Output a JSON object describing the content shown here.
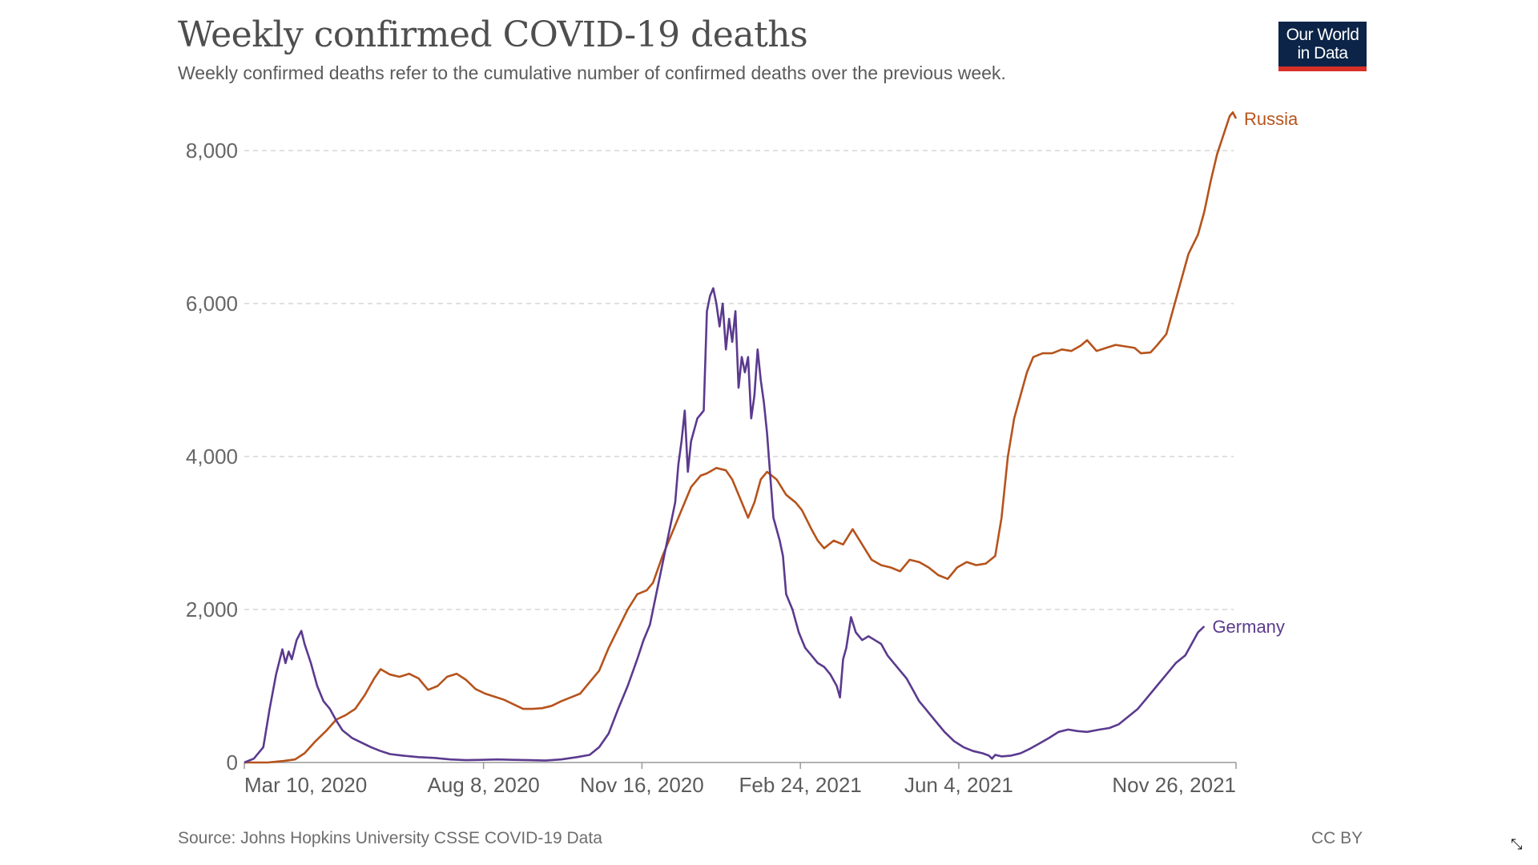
{
  "header": {
    "title": "Weekly confirmed COVID-19 deaths",
    "subtitle": "Weekly confirmed deaths refer to the cumulative number of confirmed deaths over the previous week."
  },
  "logo": {
    "line1": "Our World",
    "line2": "in Data",
    "bg_color": "#0b2447",
    "accent_color": "#d73027"
  },
  "footer": {
    "source": "Source: Johns Hopkins University CSSE COVID-19 Data",
    "license": "CC BY",
    "expand_icon": "collapse-arrows-icon"
  },
  "chart_data": {
    "type": "line",
    "title": "Weekly confirmed COVID-19 deaths",
    "subtitle": "Weekly confirmed deaths refer to the cumulative number of confirmed deaths over the previous week.",
    "xlabel": "",
    "ylabel": "",
    "x_unit": "days since Mar 10, 2020",
    "xlim": [
      0,
      626
    ],
    "ylim": [
      0,
      8500
    ],
    "grid": "horizontal dashed",
    "legend": "inline labels at line ends (right)",
    "y_ticks": [
      {
        "value": 0,
        "label": "0"
      },
      {
        "value": 2000,
        "label": "2,000"
      },
      {
        "value": 4000,
        "label": "4,000"
      },
      {
        "value": 6000,
        "label": "6,000"
      },
      {
        "value": 8000,
        "label": "8,000"
      }
    ],
    "x_ticks": [
      {
        "value": 0,
        "label": "Mar 10, 2020"
      },
      {
        "value": 151,
        "label": "Aug 8, 2020"
      },
      {
        "value": 251,
        "label": "Nov 16, 2020"
      },
      {
        "value": 351,
        "label": "Feb 24, 2021"
      },
      {
        "value": 451,
        "label": "Jun 4, 2021"
      },
      {
        "value": 626,
        "label": "Nov 26, 2021"
      }
    ],
    "series": [
      {
        "name": "Russia",
        "color": "#b6531c",
        "points": [
          [
            0,
            0
          ],
          [
            15,
            0
          ],
          [
            25,
            20
          ],
          [
            32,
            40
          ],
          [
            38,
            120
          ],
          [
            45,
            280
          ],
          [
            52,
            420
          ],
          [
            58,
            560
          ],
          [
            64,
            620
          ],
          [
            70,
            700
          ],
          [
            76,
            880
          ],
          [
            82,
            1100
          ],
          [
            86,
            1220
          ],
          [
            92,
            1150
          ],
          [
            98,
            1120
          ],
          [
            104,
            1160
          ],
          [
            110,
            1100
          ],
          [
            116,
            950
          ],
          [
            122,
            1000
          ],
          [
            128,
            1120
          ],
          [
            134,
            1160
          ],
          [
            140,
            1080
          ],
          [
            146,
            960
          ],
          [
            152,
            900
          ],
          [
            158,
            860
          ],
          [
            164,
            820
          ],
          [
            170,
            760
          ],
          [
            176,
            700
          ],
          [
            182,
            700
          ],
          [
            188,
            710
          ],
          [
            194,
            740
          ],
          [
            200,
            800
          ],
          [
            206,
            850
          ],
          [
            212,
            900
          ],
          [
            218,
            1050
          ],
          [
            224,
            1200
          ],
          [
            230,
            1500
          ],
          [
            236,
            1750
          ],
          [
            242,
            2000
          ],
          [
            248,
            2200
          ],
          [
            254,
            2250
          ],
          [
            258,
            2350
          ],
          [
            264,
            2700
          ],
          [
            270,
            3000
          ],
          [
            276,
            3300
          ],
          [
            282,
            3600
          ],
          [
            288,
            3750
          ],
          [
            292,
            3780
          ],
          [
            298,
            3850
          ],
          [
            304,
            3820
          ],
          [
            308,
            3700
          ],
          [
            314,
            3400
          ],
          [
            318,
            3200
          ],
          [
            322,
            3400
          ],
          [
            326,
            3700
          ],
          [
            330,
            3800
          ],
          [
            336,
            3700
          ],
          [
            342,
            3500
          ],
          [
            348,
            3400
          ],
          [
            352,
            3300
          ],
          [
            358,
            3050
          ],
          [
            362,
            2900
          ],
          [
            366,
            2800
          ],
          [
            372,
            2900
          ],
          [
            378,
            2850
          ],
          [
            384,
            3050
          ],
          [
            390,
            2850
          ],
          [
            396,
            2650
          ],
          [
            402,
            2580
          ],
          [
            408,
            2550
          ],
          [
            414,
            2500
          ],
          [
            420,
            2650
          ],
          [
            426,
            2620
          ],
          [
            432,
            2550
          ],
          [
            438,
            2450
          ],
          [
            444,
            2400
          ],
          [
            450,
            2550
          ],
          [
            456,
            2620
          ],
          [
            462,
            2580
          ],
          [
            468,
            2600
          ],
          [
            474,
            2700
          ],
          [
            478,
            3200
          ],
          [
            482,
            4000
          ],
          [
            486,
            4500
          ],
          [
            490,
            4800
          ],
          [
            494,
            5100
          ],
          [
            498,
            5300
          ],
          [
            504,
            5350
          ],
          [
            510,
            5350
          ],
          [
            516,
            5400
          ],
          [
            522,
            5380
          ],
          [
            528,
            5450
          ],
          [
            532,
            5520
          ],
          [
            538,
            5380
          ],
          [
            544,
            5420
          ],
          [
            550,
            5460
          ],
          [
            556,
            5440
          ],
          [
            562,
            5420
          ],
          [
            566,
            5350
          ],
          [
            572,
            5360
          ],
          [
            576,
            5450
          ],
          [
            582,
            5600
          ],
          [
            586,
            5900
          ],
          [
            590,
            6200
          ],
          [
            596,
            6650
          ],
          [
            602,
            6900
          ],
          [
            606,
            7200
          ],
          [
            610,
            7600
          ],
          [
            614,
            7950
          ],
          [
            618,
            8200
          ],
          [
            622,
            8450
          ],
          [
            624,
            8500
          ],
          [
            626,
            8420
          ]
        ]
      },
      {
        "name": "Germany",
        "color": "#5b3a8e",
        "points": [
          [
            0,
            0
          ],
          [
            6,
            50
          ],
          [
            12,
            200
          ],
          [
            16,
            700
          ],
          [
            20,
            1150
          ],
          [
            24,
            1480
          ],
          [
            26,
            1300
          ],
          [
            28,
            1450
          ],
          [
            30,
            1350
          ],
          [
            33,
            1600
          ],
          [
            36,
            1720
          ],
          [
            38,
            1550
          ],
          [
            42,
            1300
          ],
          [
            46,
            1000
          ],
          [
            50,
            800
          ],
          [
            54,
            700
          ],
          [
            58,
            550
          ],
          [
            62,
            420
          ],
          [
            68,
            320
          ],
          [
            74,
            260
          ],
          [
            80,
            200
          ],
          [
            86,
            150
          ],
          [
            92,
            110
          ],
          [
            100,
            90
          ],
          [
            110,
            70
          ],
          [
            120,
            60
          ],
          [
            130,
            40
          ],
          [
            140,
            30
          ],
          [
            150,
            35
          ],
          [
            160,
            40
          ],
          [
            170,
            35
          ],
          [
            180,
            30
          ],
          [
            190,
            25
          ],
          [
            200,
            40
          ],
          [
            210,
            70
          ],
          [
            218,
            100
          ],
          [
            224,
            200
          ],
          [
            230,
            380
          ],
          [
            236,
            700
          ],
          [
            242,
            1000
          ],
          [
            248,
            1350
          ],
          [
            252,
            1600
          ],
          [
            256,
            1800
          ],
          [
            260,
            2200
          ],
          [
            264,
            2600
          ],
          [
            268,
            3000
          ],
          [
            272,
            3400
          ],
          [
            274,
            3900
          ],
          [
            276,
            4200
          ],
          [
            278,
            4600
          ],
          [
            280,
            3800
          ],
          [
            282,
            4200
          ],
          [
            286,
            4500
          ],
          [
            288,
            4550
          ],
          [
            290,
            4600
          ],
          [
            292,
            5900
          ],
          [
            294,
            6100
          ],
          [
            296,
            6200
          ],
          [
            298,
            6000
          ],
          [
            300,
            5700
          ],
          [
            302,
            6000
          ],
          [
            304,
            5400
          ],
          [
            306,
            5800
          ],
          [
            308,
            5500
          ],
          [
            310,
            5900
          ],
          [
            312,
            4900
          ],
          [
            314,
            5300
          ],
          [
            316,
            5100
          ],
          [
            318,
            5300
          ],
          [
            320,
            4500
          ],
          [
            322,
            4800
          ],
          [
            324,
            5400
          ],
          [
            326,
            5000
          ],
          [
            328,
            4700
          ],
          [
            330,
            4300
          ],
          [
            334,
            3200
          ],
          [
            338,
            2900
          ],
          [
            340,
            2700
          ],
          [
            342,
            2200
          ],
          [
            346,
            2000
          ],
          [
            350,
            1700
          ],
          [
            354,
            1500
          ],
          [
            358,
            1400
          ],
          [
            362,
            1300
          ],
          [
            366,
            1250
          ],
          [
            370,
            1150
          ],
          [
            374,
            1000
          ],
          [
            376,
            850
          ],
          [
            378,
            1350
          ],
          [
            380,
            1500
          ],
          [
            383,
            1900
          ],
          [
            386,
            1700
          ],
          [
            390,
            1600
          ],
          [
            394,
            1650
          ],
          [
            398,
            1600
          ],
          [
            402,
            1550
          ],
          [
            406,
            1400
          ],
          [
            410,
            1300
          ],
          [
            414,
            1200
          ],
          [
            418,
            1100
          ],
          [
            422,
            950
          ],
          [
            426,
            800
          ],
          [
            430,
            700
          ],
          [
            436,
            550
          ],
          [
            442,
            400
          ],
          [
            448,
            280
          ],
          [
            454,
            200
          ],
          [
            460,
            150
          ],
          [
            466,
            120
          ],
          [
            470,
            90
          ],
          [
            472,
            50
          ],
          [
            474,
            100
          ],
          [
            478,
            80
          ],
          [
            484,
            90
          ],
          [
            490,
            120
          ],
          [
            496,
            180
          ],
          [
            502,
            250
          ],
          [
            508,
            320
          ],
          [
            514,
            400
          ],
          [
            520,
            430
          ],
          [
            526,
            410
          ],
          [
            532,
            400
          ],
          [
            540,
            430
          ],
          [
            546,
            450
          ],
          [
            552,
            500
          ],
          [
            558,
            600
          ],
          [
            564,
            700
          ],
          [
            570,
            850
          ],
          [
            576,
            1000
          ],
          [
            582,
            1150
          ],
          [
            588,
            1300
          ],
          [
            594,
            1400
          ],
          [
            598,
            1550
          ],
          [
            602,
            1700
          ],
          [
            606,
            1780
          ]
        ]
      }
    ]
  }
}
